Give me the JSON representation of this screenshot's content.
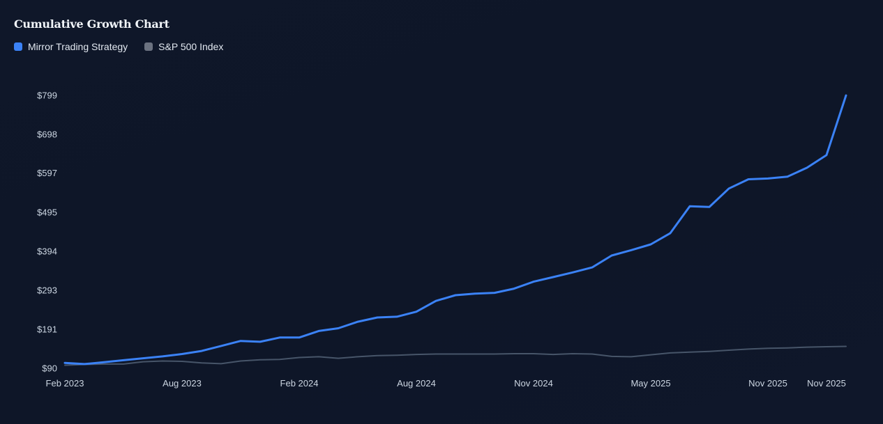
{
  "chart_data": {
    "type": "line",
    "title": "Cumulative Growth Chart",
    "xlabel": "",
    "ylabel": "",
    "ylim": [
      90,
      799
    ],
    "y_ticks": [
      "$90",
      "$191",
      "$293",
      "$394",
      "$495",
      "$597",
      "$698",
      "$799"
    ],
    "y_tick_values": [
      90,
      191,
      293,
      394,
      495,
      597,
      698,
      799
    ],
    "x_tick_labels": [
      "Feb 2023",
      "Aug 2023",
      "Feb 2024",
      "Aug 2024",
      "Nov 2024",
      "May 2025",
      "Nov 2025",
      "Nov 2025"
    ],
    "x_tick_index": [
      0,
      6,
      12,
      18,
      24,
      30,
      36,
      39
    ],
    "grid": false,
    "legend_position": "top-left",
    "series": [
      {
        "name": "Mirror Trading Strategy",
        "color": "#3b82f6",
        "values": [
          104,
          101,
          106,
          111,
          116,
          121,
          127,
          135,
          148,
          161,
          159,
          170,
          170,
          187,
          194,
          211,
          222,
          224,
          237,
          265,
          280,
          284,
          286,
          297,
          315,
          327,
          339,
          352,
          383,
          397,
          412,
          441,
          511,
          509,
          557,
          581,
          583,
          588,
          611,
          644,
          799
        ]
      },
      {
        "name": "S&P 500 Index",
        "color": "#475569",
        "values": [
          98,
          100,
          101,
          101,
          107,
          109,
          108,
          104,
          102,
          109,
          112,
          113,
          118,
          120,
          116,
          120,
          123,
          124,
          126,
          127,
          127,
          127,
          127,
          128,
          128,
          126,
          128,
          127,
          121,
          120,
          125,
          130,
          132,
          134,
          137,
          140,
          142,
          143,
          145,
          146,
          147
        ]
      }
    ]
  }
}
